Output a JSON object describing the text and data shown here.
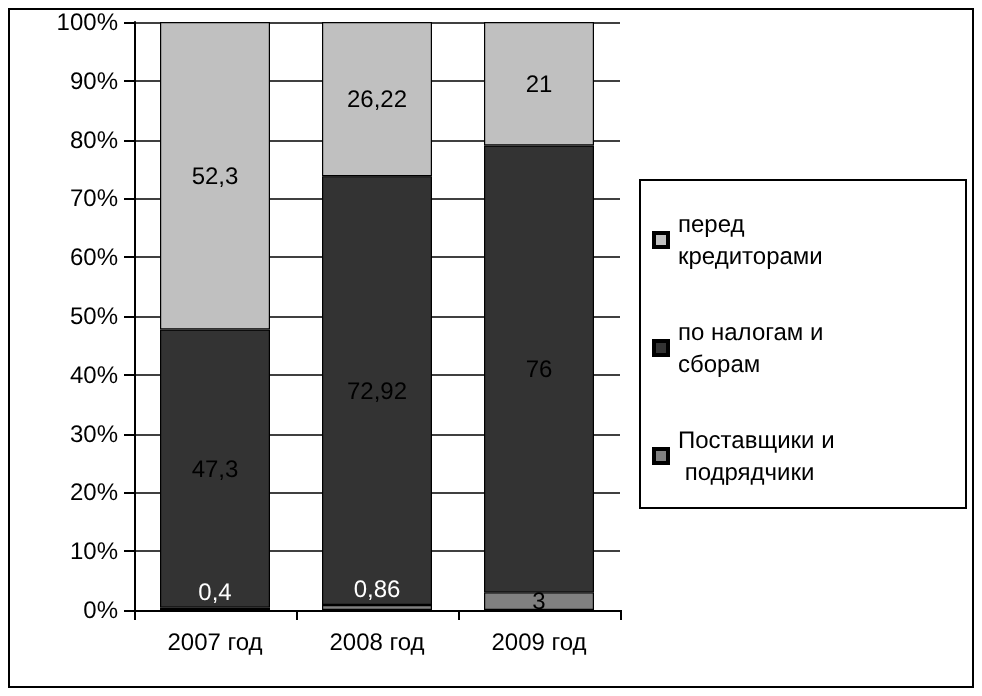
{
  "chart_data": {
    "type": "bar",
    "stacked": true,
    "categories": [
      "2007 год",
      "2008 год",
      "2009 год"
    ],
    "series": [
      {
        "name": "Поставщики и подрядчики",
        "color": "#808080",
        "values": [
          0.4,
          0.86,
          3
        ],
        "value_labels": [
          "0,4",
          "0,86",
          "3"
        ]
      },
      {
        "name": "по налогам и сборам",
        "color": "#333333",
        "values": [
          47.3,
          72.92,
          76
        ],
        "value_labels": [
          "47,3",
          "72,92",
          "76"
        ]
      },
      {
        "name": "перед кредиторами",
        "color": "#c0c0c0",
        "values": [
          52.3,
          26.22,
          21
        ],
        "value_labels": [
          "52,3",
          "26,22",
          "21"
        ]
      }
    ],
    "ylim": [
      0,
      100
    ],
    "yticks": [
      {
        "value": 0,
        "label": "0%"
      },
      {
        "value": 10,
        "label": "10%"
      },
      {
        "value": 20,
        "label": "20%"
      },
      {
        "value": 30,
        "label": "30%"
      },
      {
        "value": 40,
        "label": "40%"
      },
      {
        "value": 50,
        "label": "50%"
      },
      {
        "value": 60,
        "label": "60%"
      },
      {
        "value": 70,
        "label": "70%"
      },
      {
        "value": 80,
        "label": "80%"
      },
      {
        "value": 90,
        "label": "90%"
      },
      {
        "value": 100,
        "label": "100%"
      }
    ],
    "grid": "y",
    "legend": "right"
  }
}
